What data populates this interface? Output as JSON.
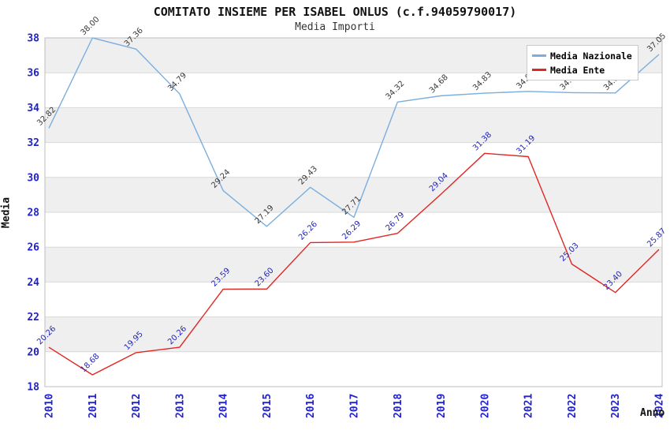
{
  "header": {
    "title": "COMITATO INSIEME PER ISABEL ONLUS (c.f.94059790017)",
    "subtitle": "Media Importi"
  },
  "axes": {
    "y_title": "Media",
    "x_title": "Anno",
    "y_tick_labels": [
      "18",
      "20",
      "22",
      "24",
      "26",
      "28",
      "30",
      "32",
      "34",
      "36",
      "38"
    ],
    "tick_label_color": "#2222cc"
  },
  "chart_data": {
    "type": "line",
    "title": "COMITATO INSIEME PER ISABEL ONLUS (c.f.94059790017)",
    "subtitle": "Media Importi",
    "xlabel": "Anno",
    "ylabel": "Media",
    "ylim": [
      18,
      38
    ],
    "ytick_step": 2,
    "grid": "horizontal gridlines with alternating gray/white bands",
    "band_colors": [
      "#efefef",
      "#ffffff"
    ],
    "gridline_color": "#d9d9d9",
    "plot_border_color": "#bdbdbd",
    "legend_position": "top-right",
    "point_labels": "each point labeled with value, rotated 45deg",
    "categories": [
      "2010",
      "2011",
      "2012",
      "2013",
      "2014",
      "2015",
      "2016",
      "2017",
      "2018",
      "2019",
      "2020",
      "2021",
      "2022",
      "2023",
      "2024"
    ],
    "series": [
      {
        "name": "Media Nazionale",
        "color": "#7aaede",
        "label_color": "#3a3a3a",
        "values": [
          32.82,
          38.0,
          37.36,
          34.79,
          29.24,
          27.19,
          29.43,
          27.71,
          34.32,
          34.68,
          34.83,
          34.93,
          34.86,
          34.84,
          37.05
        ]
      },
      {
        "name": "Media Ente",
        "color": "#e02723",
        "label_color": "#2626b8",
        "values": [
          20.26,
          18.68,
          19.95,
          20.26,
          23.59,
          23.6,
          26.26,
          26.29,
          26.79,
          29.04,
          31.38,
          31.19,
          25.03,
          23.4,
          25.87
        ]
      }
    ]
  }
}
